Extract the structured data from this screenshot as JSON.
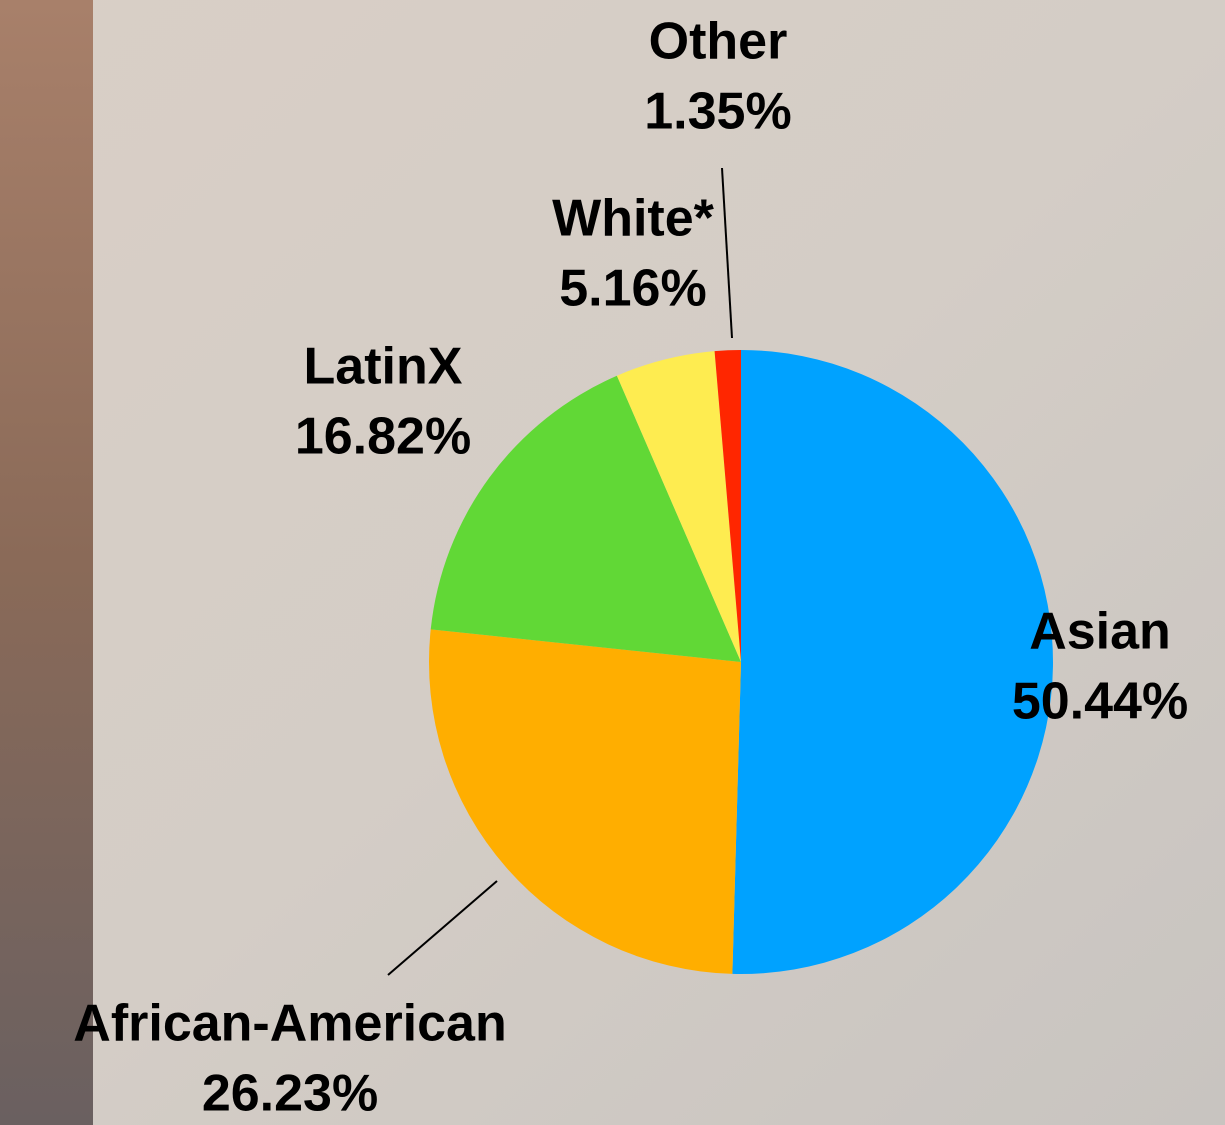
{
  "chart_data": {
    "type": "pie",
    "categories": [
      "Asian",
      "African-American",
      "LatinX",
      "White*",
      "Other"
    ],
    "values": [
      50.44,
      26.23,
      16.82,
      5.16,
      1.35
    ],
    "value_labels": [
      "50.44%",
      "26.23%",
      "16.82%",
      "5.16%",
      "1.35%"
    ],
    "colors": [
      "#00a2ff",
      "#ffae00",
      "#61d836",
      "#feec50",
      "#ff2600"
    ]
  }
}
